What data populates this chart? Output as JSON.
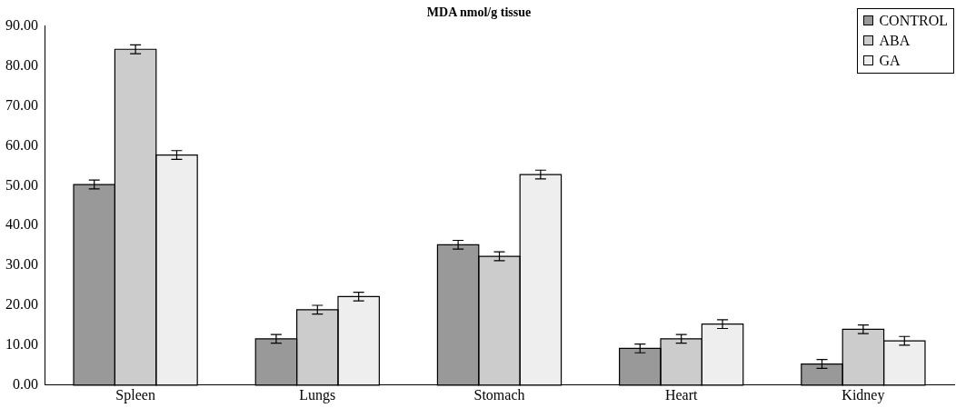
{
  "chart_data": {
    "type": "bar",
    "title": "MDA nmol/g tissue",
    "categories": [
      "Spleen",
      "Lungs",
      "Stomach",
      "Heart",
      "Kidney"
    ],
    "series": [
      {
        "name": "CONTROL",
        "color": "#999999",
        "values": [
          50.3,
          11.6,
          35.2,
          9.2,
          5.3
        ],
        "errors": [
          1.1,
          1.1,
          1.1,
          1.1,
          1.1
        ]
      },
      {
        "name": "ABA",
        "color": "#cccccc",
        "values": [
          84.2,
          18.9,
          32.3,
          11.6,
          14.0
        ],
        "errors": [
          1.1,
          1.1,
          1.1,
          1.1,
          1.1
        ]
      },
      {
        "name": "GA",
        "color": "#eeeeee",
        "values": [
          57.7,
          22.2,
          52.8,
          15.3,
          11.1
        ],
        "errors": [
          1.1,
          1.1,
          1.1,
          1.1,
          1.1
        ]
      }
    ],
    "ylim": [
      0,
      90
    ],
    "yticks": [
      {
        "value": 0,
        "label": "0.00"
      },
      {
        "value": 10,
        "label": "10.00"
      },
      {
        "value": 20,
        "label": "20.00"
      },
      {
        "value": 30,
        "label": "30.00"
      },
      {
        "value": 40,
        "label": "40.00"
      },
      {
        "value": 50,
        "label": "50.00"
      },
      {
        "value": 60,
        "label": "60.00"
      },
      {
        "value": 70,
        "label": "70.00"
      },
      {
        "value": 80,
        "label": "80.00"
      },
      {
        "value": 90,
        "label": "90.00"
      }
    ],
    "grid": false,
    "legend": "top right"
  }
}
